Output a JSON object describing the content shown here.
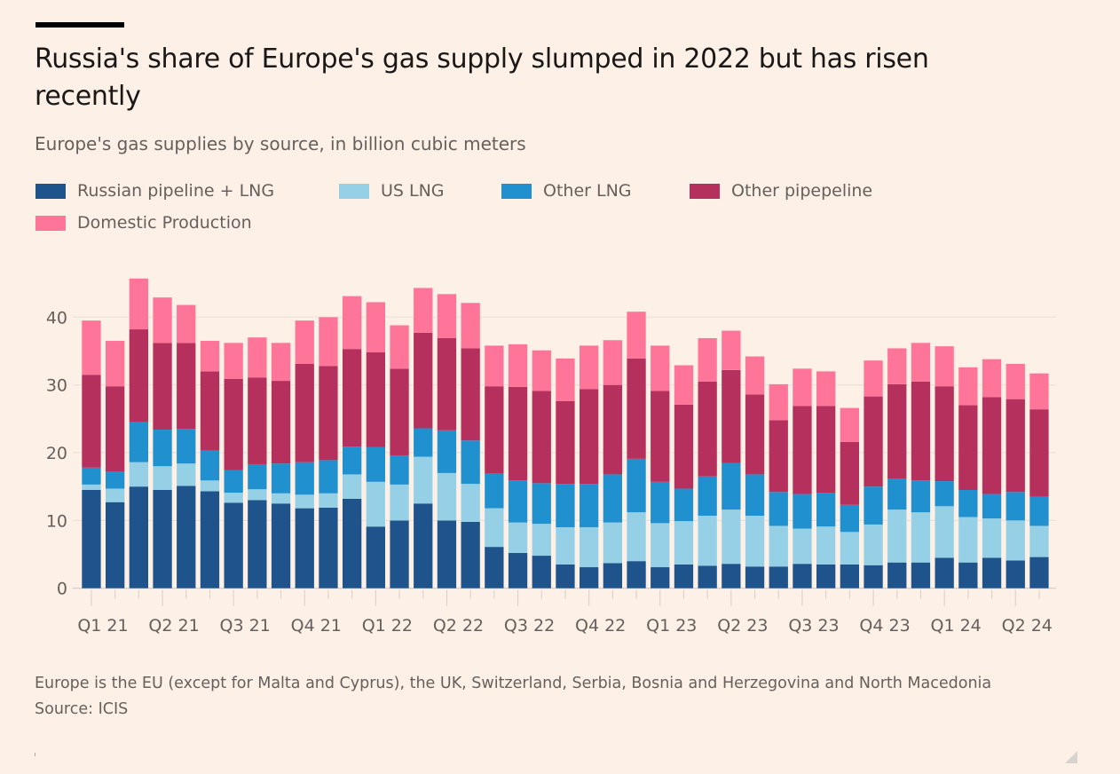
{
  "header": {
    "title": "Russia's share of Europe's gas supply slumped in 2022 but has risen recently",
    "subtitle": "Europe's gas supplies by source, in billion cubic meters"
  },
  "footer": {
    "note": "Europe is the EU (except for Malta and Cyprus), the UK, Switzerland, Serbia, Bosnia and Herzegovina and North Macedonia",
    "source": "Source: ICIS"
  },
  "chart_data": {
    "type": "bar",
    "stacked": true,
    "title": "Russia's share of Europe's gas supply slumped in 2022 but has risen recently",
    "subtitle": "Europe's gas supplies by source, in billion cubic meters",
    "xlabel": "",
    "ylabel": "",
    "ylim": [
      0,
      46
    ],
    "yticks": [
      0,
      10,
      20,
      30,
      40
    ],
    "grid": true,
    "legend_position": "top-left",
    "x_tick_labels": [
      "Q1 21",
      "Q2 21",
      "Q3 21",
      "Q4 21",
      "Q1 22",
      "Q2 22",
      "Q3 22",
      "Q4 22",
      "Q1 23",
      "Q2 23",
      "Q3 23",
      "Q4 23",
      "Q1 24",
      "Q2 24"
    ],
    "categories": [
      "1",
      "2",
      "3",
      "4",
      "5",
      "6",
      "7",
      "8",
      "9",
      "10",
      "11",
      "12",
      "13",
      "14",
      "15",
      "16",
      "17",
      "18",
      "19",
      "20",
      "21",
      "22",
      "23",
      "24",
      "25",
      "26",
      "27",
      "28",
      "29",
      "30",
      "31",
      "32",
      "33",
      "34",
      "35",
      "36",
      "37",
      "38",
      "39",
      "40",
      "41"
    ],
    "series": [
      {
        "name": "Russian pipeline + LNG",
        "color": "#1f538c",
        "values": [
          14.5,
          12.7,
          15.0,
          14.5,
          15.1,
          14.3,
          12.6,
          13.0,
          12.5,
          11.8,
          11.9,
          13.2,
          9.1,
          10.0,
          12.5,
          10.0,
          9.8,
          6.1,
          5.2,
          4.8,
          3.5,
          3.1,
          3.7,
          4.0,
          3.1,
          3.5,
          3.3,
          3.6,
          3.2,
          3.2,
          3.6,
          3.5,
          3.5,
          3.4,
          3.8,
          3.8,
          4.5,
          3.8,
          4.5,
          4.1,
          4.6
        ]
      },
      {
        "name": "US LNG",
        "color": "#96d0e6",
        "values": [
          0.8,
          2.0,
          3.6,
          3.5,
          3.3,
          1.6,
          1.5,
          1.6,
          1.5,
          2.0,
          2.1,
          3.6,
          6.6,
          5.3,
          6.9,
          7.0,
          5.6,
          5.7,
          4.5,
          4.7,
          5.5,
          5.9,
          6.0,
          7.2,
          6.5,
          6.4,
          7.4,
          8.0,
          7.5,
          6.0,
          5.2,
          5.6,
          4.8,
          6.0,
          7.8,
          7.4,
          7.6,
          6.7,
          5.8,
          5.9,
          4.6
        ]
      },
      {
        "name": "Other LNG",
        "color": "#2090ce",
        "values": [
          2.5,
          2.5,
          5.9,
          5.4,
          5.1,
          4.4,
          3.3,
          3.7,
          4.4,
          4.8,
          4.9,
          4.1,
          5.1,
          4.3,
          4.2,
          6.3,
          6.4,
          5.1,
          6.2,
          6.0,
          6.4,
          6.4,
          7.1,
          7.9,
          6.1,
          4.8,
          5.8,
          6.9,
          6.1,
          5.0,
          5.1,
          5.0,
          4.0,
          5.6,
          4.6,
          4.7,
          3.7,
          4.0,
          3.6,
          4.2,
          4.3
        ]
      },
      {
        "name": "Other pipepeline",
        "color": "#b5305c",
        "values": [
          13.7,
          12.6,
          13.7,
          12.8,
          12.7,
          11.7,
          13.5,
          12.8,
          12.2,
          14.5,
          13.9,
          14.4,
          14.0,
          12.8,
          14.1,
          13.6,
          13.6,
          12.9,
          13.8,
          13.6,
          12.2,
          14.0,
          13.2,
          14.8,
          13.4,
          12.4,
          14.0,
          13.7,
          11.8,
          10.6,
          13.0,
          12.8,
          9.3,
          13.3,
          13.9,
          14.6,
          14.0,
          12.5,
          14.3,
          13.7,
          12.9
        ]
      },
      {
        "name": "Domestic Production",
        "color": "#ff7599",
        "values": [
          8.0,
          6.7,
          7.5,
          6.7,
          5.6,
          4.5,
          5.3,
          5.9,
          5.6,
          6.4,
          7.2,
          7.8,
          7.4,
          6.4,
          6.6,
          6.5,
          6.7,
          6.0,
          6.3,
          6.0,
          6.3,
          6.4,
          6.6,
          6.9,
          6.7,
          5.8,
          6.4,
          5.8,
          5.6,
          5.3,
          5.5,
          5.1,
          5.0,
          5.3,
          5.3,
          5.7,
          5.9,
          5.6,
          5.6,
          5.2,
          5.3
        ]
      }
    ]
  }
}
